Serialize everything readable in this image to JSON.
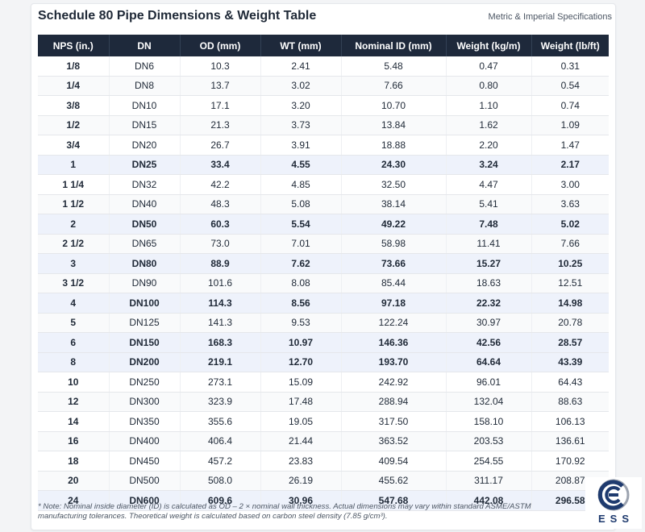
{
  "header": {
    "title": "Schedule 80 Pipe Dimensions & Weight Table",
    "subtitle": "Metric & Imperial Specifications"
  },
  "table": {
    "columns": [
      "NPS (in.)",
      "DN",
      "OD (mm)",
      "WT (mm)",
      "Nominal ID (mm)",
      "Weight (kg/m)",
      "Weight (lb/ft)"
    ],
    "rows": [
      {
        "cells": [
          "1/8",
          "DN6",
          "10.3",
          "2.41",
          "5.48",
          "0.47",
          "0.31"
        ],
        "highlight": false
      },
      {
        "cells": [
          "1/4",
          "DN8",
          "13.7",
          "3.02",
          "7.66",
          "0.80",
          "0.54"
        ],
        "highlight": false
      },
      {
        "cells": [
          "3/8",
          "DN10",
          "17.1",
          "3.20",
          "10.70",
          "1.10",
          "0.74"
        ],
        "highlight": false
      },
      {
        "cells": [
          "1/2",
          "DN15",
          "21.3",
          "3.73",
          "13.84",
          "1.62",
          "1.09"
        ],
        "highlight": false
      },
      {
        "cells": [
          "3/4",
          "DN20",
          "26.7",
          "3.91",
          "18.88",
          "2.20",
          "1.47"
        ],
        "highlight": false
      },
      {
        "cells": [
          "1",
          "DN25",
          "33.4",
          "4.55",
          "24.30",
          "3.24",
          "2.17"
        ],
        "highlight": true
      },
      {
        "cells": [
          "1 1/4",
          "DN32",
          "42.2",
          "4.85",
          "32.50",
          "4.47",
          "3.00"
        ],
        "highlight": false
      },
      {
        "cells": [
          "1 1/2",
          "DN40",
          "48.3",
          "5.08",
          "38.14",
          "5.41",
          "3.63"
        ],
        "highlight": false
      },
      {
        "cells": [
          "2",
          "DN50",
          "60.3",
          "5.54",
          "49.22",
          "7.48",
          "5.02"
        ],
        "highlight": true
      },
      {
        "cells": [
          "2 1/2",
          "DN65",
          "73.0",
          "7.01",
          "58.98",
          "11.41",
          "7.66"
        ],
        "highlight": false
      },
      {
        "cells": [
          "3",
          "DN80",
          "88.9",
          "7.62",
          "73.66",
          "15.27",
          "10.25"
        ],
        "highlight": true
      },
      {
        "cells": [
          "3 1/2",
          "DN90",
          "101.6",
          "8.08",
          "85.44",
          "18.63",
          "12.51"
        ],
        "highlight": false
      },
      {
        "cells": [
          "4",
          "DN100",
          "114.3",
          "8.56",
          "97.18",
          "22.32",
          "14.98"
        ],
        "highlight": true
      },
      {
        "cells": [
          "5",
          "DN125",
          "141.3",
          "9.53",
          "122.24",
          "30.97",
          "20.78"
        ],
        "highlight": false
      },
      {
        "cells": [
          "6",
          "DN150",
          "168.3",
          "10.97",
          "146.36",
          "42.56",
          "28.57"
        ],
        "highlight": true
      },
      {
        "cells": [
          "8",
          "DN200",
          "219.1",
          "12.70",
          "193.70",
          "64.64",
          "43.39"
        ],
        "highlight": true
      },
      {
        "cells": [
          "10",
          "DN250",
          "273.1",
          "15.09",
          "242.92",
          "96.01",
          "64.43"
        ],
        "highlight": false
      },
      {
        "cells": [
          "12",
          "DN300",
          "323.9",
          "17.48",
          "288.94",
          "132.04",
          "88.63"
        ],
        "highlight": false
      },
      {
        "cells": [
          "14",
          "DN350",
          "355.6",
          "19.05",
          "317.50",
          "158.10",
          "106.13"
        ],
        "highlight": false
      },
      {
        "cells": [
          "16",
          "DN400",
          "406.4",
          "21.44",
          "363.52",
          "203.53",
          "136.61"
        ],
        "highlight": false
      },
      {
        "cells": [
          "18",
          "DN450",
          "457.2",
          "23.83",
          "409.54",
          "254.55",
          "170.92"
        ],
        "highlight": false
      },
      {
        "cells": [
          "20",
          "DN500",
          "508.0",
          "26.19",
          "455.62",
          "311.17",
          "208.87"
        ],
        "highlight": false
      },
      {
        "cells": [
          "24",
          "DN600",
          "609.6",
          "30.96",
          "547.68",
          "442.08",
          "296.58"
        ],
        "highlight": true
      }
    ]
  },
  "footnote": "* Note: Nominal inside diameter (ID) is calculated as OD – 2 × nominal wall thickness. Actual dimensions may vary within standard ASME/ASTM manufacturing tolerances. Theoretical weight is calculated based on carbon steel density (7.85 g/cm³).",
  "logo": {
    "text": "ESS",
    "icon": "ess-logo-icon",
    "colors": {
      "primary": "#1e3a6e",
      "accent": "#9ca3af"
    }
  },
  "colors": {
    "header_bg": "#1e293b",
    "highlight_row": "#eef2fb",
    "striped_row": "#f9fafb"
  }
}
